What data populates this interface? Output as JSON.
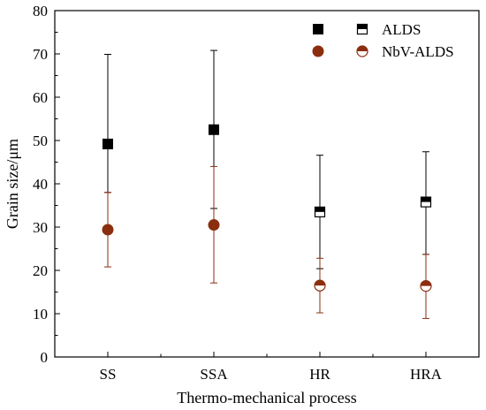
{
  "chart_data": {
    "type": "scatter",
    "title": "",
    "xlabel": "Thermo-mechanical process",
    "ylabel": "Grain size/μm",
    "categories": [
      "SS",
      "SSA",
      "HR",
      "HRA"
    ],
    "ylim": [
      0,
      80
    ],
    "yticks": [
      0,
      10,
      20,
      30,
      40,
      50,
      60,
      70,
      80
    ],
    "grid": false,
    "legend_position": "top-right",
    "series": [
      {
        "name": "ALDS",
        "color": "#000000",
        "markers": [
          "filled-square",
          "filled-square",
          "half-filled-square",
          "half-filled-square"
        ],
        "values": [
          49.2,
          52.5,
          33.5,
          35.8
        ],
        "error_low": [
          38.0,
          34.3,
          20.4,
          23.7
        ],
        "error_high": [
          69.9,
          70.8,
          46.6,
          47.4
        ]
      },
      {
        "name": "NbV-ALDS",
        "color": "#8b2e0f",
        "markers": [
          "filled-circle",
          "filled-circle",
          "half-filled-circle",
          "half-filled-circle"
        ],
        "values": [
          29.4,
          30.5,
          16.5,
          16.4
        ],
        "error_low": [
          20.8,
          17.1,
          10.2,
          8.9
        ],
        "error_high": [
          38.0,
          44.0,
          22.8,
          23.7
        ]
      }
    ],
    "legend": [
      {
        "label": "ALDS",
        "marker": "square"
      },
      {
        "label": "NbV-ALDS",
        "marker": "circle"
      }
    ]
  }
}
